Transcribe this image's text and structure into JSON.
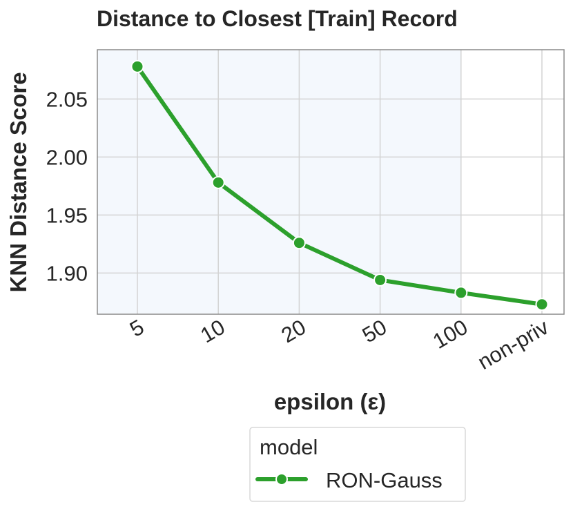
{
  "chart_data": {
    "type": "line",
    "title": "Distance to Closest [Train] Record",
    "xlabel": "epsilon (ε)",
    "ylabel": "KNN Distance Score",
    "categories": [
      "5",
      "10",
      "20",
      "50",
      "100",
      "non-priv"
    ],
    "yticks": [
      "1.90",
      "1.95",
      "2.00",
      "2.05"
    ],
    "ylim": [
      1.8645,
      2.0925
    ],
    "grid": true,
    "shaded_region": {
      "from": "5",
      "to": "100",
      "color": "#f4f8fd"
    },
    "series": [
      {
        "name": "RON-Gauss",
        "color": "#2ca02c",
        "values": [
          2.078,
          1.978,
          1.926,
          1.894,
          1.883,
          1.873
        ]
      }
    ],
    "legend": {
      "title": "model",
      "placement": "bottom-center"
    }
  }
}
